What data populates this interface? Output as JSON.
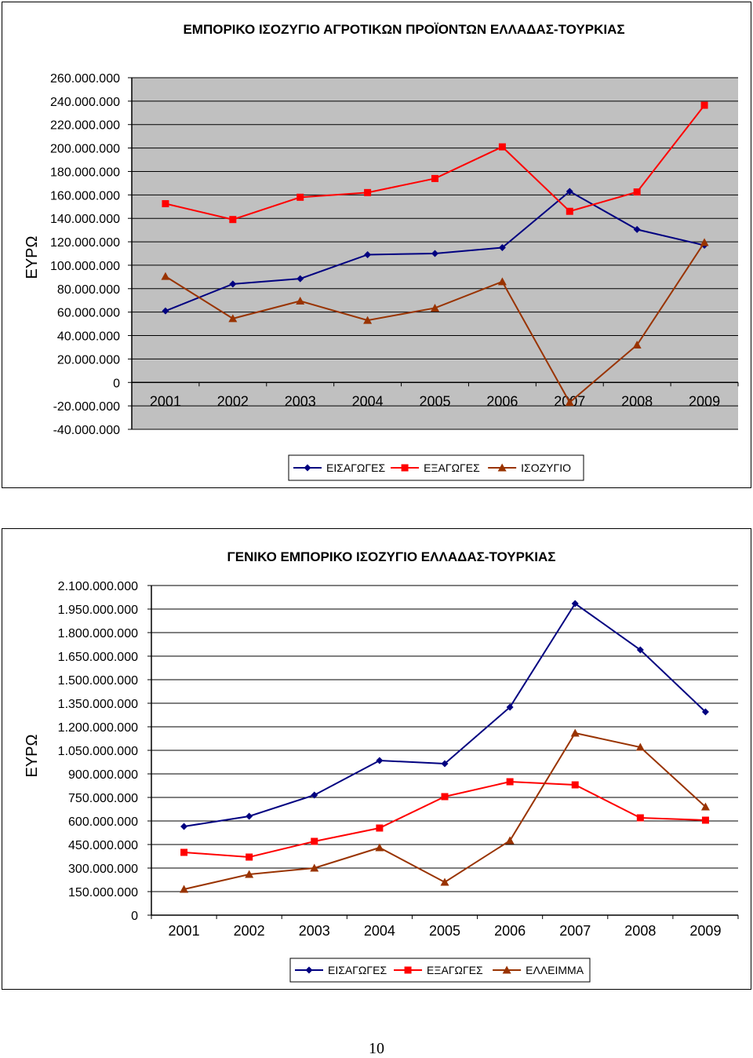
{
  "chart_data": [
    {
      "type": "line",
      "title": "ΕΜΠΟΡΙΚΟ ΙΣΟΖΥΓΙΟ ΑΓΡΟΤΙΚΩΝ ΠΡΟΪΟΝΤΩΝ ΕΛΛΑΔΑΣ-ΤΟΥΡΚΙΑΣ",
      "ylabel": "ΕΥΡΩ",
      "xlabel": "",
      "categories": [
        "2001",
        "2002",
        "2003",
        "2004",
        "2005",
        "2006",
        "2007",
        "2008",
        "2009"
      ],
      "ylim": [
        -40000000,
        260000000
      ],
      "ytick_step": 20000000,
      "yticks_labels": [
        "260.000.000",
        "240.000.000",
        "220.000.000",
        "200.000.000",
        "180.000.000",
        "160.000.000",
        "140.000.000",
        "120.000.000",
        "100.000.000",
        "80.000.000",
        "60.000.000",
        "40.000.000",
        "20.000.000",
        "0",
        "-20.000.000",
        "-40.000.000"
      ],
      "grid": true,
      "legend": "bottom",
      "plot_background": "#c0c0c0",
      "series": [
        {
          "name": "ΕΙΣΑΓΩΓΕΣ",
          "color": "#000080",
          "marker": "diamond",
          "values": [
            61000000,
            84000000,
            88500000,
            109000000,
            110000000,
            115000000,
            163000000,
            130500000,
            117000000
          ]
        },
        {
          "name": "ΕΞΑΓΩΓΕΣ",
          "color": "#ff0000",
          "marker": "square",
          "values": [
            152500000,
            139000000,
            158000000,
            162000000,
            174000000,
            201000000,
            146000000,
            162500000,
            236500000
          ]
        },
        {
          "name": "ΙΣΟΖΥΓΙΟ",
          "color": "#993300",
          "marker": "triangle",
          "values": [
            90500000,
            54500000,
            69500000,
            53000000,
            63500000,
            86000000,
            -17000000,
            32000000,
            119500000
          ]
        }
      ]
    },
    {
      "type": "line",
      "title": "ΓΕΝΙΚΟ ΕΜΠΟΡΙΚΟ ΙΣΟΖΥΓΙΟ ΕΛΛΑΔΑΣ-ΤΟΥΡΚΙΑΣ",
      "ylabel": "ΕΥΡΩ",
      "xlabel": "",
      "categories": [
        "2001",
        "2002",
        "2003",
        "2004",
        "2005",
        "2006",
        "2007",
        "2008",
        "2009"
      ],
      "ylim": [
        0,
        2100000000
      ],
      "ytick_step": 150000000,
      "yticks_labels": [
        "2.100.000.000",
        "1.950.000.000",
        "1.800.000.000",
        "1.650.000.000",
        "1.500.000.000",
        "1.350.000.000",
        "1.200.000.000",
        "1.050.000.000",
        "900.000.000",
        "750.000.000",
        "600.000.000",
        "450.000.000",
        "300.000.000",
        "150.000.000",
        "0"
      ],
      "grid": true,
      "legend": "bottom",
      "plot_background": "#ffffff",
      "series": [
        {
          "name": "ΕΙΣΑΓΩΓΕΣ",
          "color": "#000080",
          "marker": "diamond",
          "values": [
            565000000,
            630000000,
            765000000,
            985000000,
            965000000,
            1325000000,
            1985000000,
            1690000000,
            1295000000
          ]
        },
        {
          "name": "ΕΞΑΓΩΓΕΣ",
          "color": "#ff0000",
          "marker": "square",
          "values": [
            400000000,
            370000000,
            470000000,
            555000000,
            755000000,
            850000000,
            830000000,
            620000000,
            605000000
          ]
        },
        {
          "name": "ΕΛΛΕΙΜΜΑ",
          "color": "#993300",
          "marker": "triangle",
          "values": [
            165000000,
            260000000,
            300000000,
            430000000,
            210000000,
            475000000,
            1160000000,
            1070000000,
            690000000
          ]
        }
      ]
    }
  ],
  "page_number": "10"
}
